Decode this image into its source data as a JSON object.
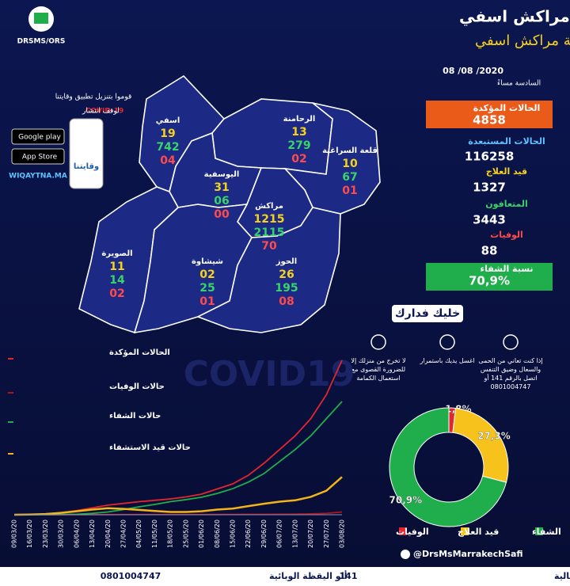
{
  "header": {
    "logo_text": "DRSMS/ORS",
    "title": "المديرية الجهوية للصحة بجهة مراكش اسفي",
    "subtitle": "الرصد الصحي لفيروس كورونا حسب أقاليم جهة مراكش اسفي"
  },
  "app": {
    "line1": "قوموا بتنزيل تطبيق وقايتنا",
    "line2_prefix": "لوقف انتشار",
    "line2_highlight": "COVID-19",
    "google": "Google play",
    "apple": "App Store",
    "app_name": "وقايتنا",
    "site": "WIQAYTNA.MA"
  },
  "map": {
    "regions": [
      {
        "name": "اسفي",
        "treatment": "19",
        "recovered": "742",
        "deaths": "04"
      },
      {
        "name": "الرحامنة",
        "treatment": "13",
        "recovered": "279",
        "deaths": "02"
      },
      {
        "name": "قلعة السراغنة",
        "treatment": "10",
        "recovered": "67",
        "deaths": "01"
      },
      {
        "name": "اليوسفية",
        "treatment": "31",
        "recovered": "06",
        "deaths": "00"
      },
      {
        "name": "مراكش",
        "treatment": "1215",
        "recovered": "2115",
        "deaths": "70"
      },
      {
        "name": "الصويرة",
        "treatment": "11",
        "recovered": "14",
        "deaths": "02"
      },
      {
        "name": "شيشاوة",
        "treatment": "02",
        "recovered": "25",
        "deaths": "01"
      },
      {
        "name": "الحوز",
        "treatment": "26",
        "recovered": "195",
        "deaths": "08"
      }
    ]
  },
  "stats": {
    "date": "08 /08 /2020",
    "time": "السادسة مساءً",
    "items": [
      {
        "label": "الحالات المؤكدة",
        "value": "4858"
      },
      {
        "label": "الحالات المستبعدة",
        "value": "116258"
      },
      {
        "label": "قيد العلاج",
        "value": "1327"
      },
      {
        "label": "المتعافون",
        "value": "3443"
      },
      {
        "label": "الوفيات",
        "value": "88"
      },
      {
        "label": "نسبة الشفاء",
        "value": "70,9%"
      }
    ]
  },
  "tips": {
    "title": "خليك فدارك",
    "items": [
      "إذا كنت تعاني من الحمى والسعال وضيق التنفس اتصل بالرقم 141 أو 0801004747",
      "اغسل يديك باستمرار",
      "لا تخرج من منزلك إلا للضرورة القصوى مع استعمال الكمامة"
    ]
  },
  "watermark": "COVID19",
  "chart_data": [
    {
      "type": "line",
      "categories": [
        "09/03/20",
        "16/03/20",
        "23/03/20",
        "30/03/20",
        "06/04/20",
        "13/04/20",
        "20/04/20",
        "27/04/20",
        "04/05/20",
        "11/05/20",
        "18/05/20",
        "25/05/20",
        "01/06/20",
        "08/06/20",
        "15/06/20",
        "22/06/20",
        "29/06/20",
        "06/07/20",
        "13/07/20",
        "20/07/20",
        "27/07/20",
        "03/08/20"
      ],
      "series": [
        {
          "name": "الحالات المؤكدة",
          "color": "#e3262d",
          "values": [
            0,
            5,
            20,
            60,
            120,
            200,
            280,
            330,
            380,
            420,
            460,
            520,
            600,
            750,
            900,
            1150,
            1500,
            1900,
            2300,
            2800,
            3500,
            4500
          ]
        },
        {
          "name": "حالات الوفيات",
          "color": "#b3121b",
          "values": [
            0,
            0,
            0,
            1,
            2,
            3,
            4,
            5,
            5,
            5,
            6,
            6,
            6,
            7,
            8,
            10,
            12,
            14,
            18,
            25,
            40,
            80
          ]
        },
        {
          "name": "حالات الشفاء",
          "color": "#1fae4b",
          "values": [
            0,
            0,
            0,
            5,
            15,
            40,
            80,
            150,
            230,
            300,
            380,
            440,
            510,
            620,
            760,
            950,
            1200,
            1550,
            1900,
            2300,
            2800,
            3300
          ]
        },
        {
          "name": "حالات قيد الاستشفاء",
          "color": "#f2b418",
          "values": [
            0,
            5,
            20,
            55,
            100,
            150,
            190,
            170,
            140,
            110,
            80,
            80,
            100,
            150,
            180,
            250,
            320,
            380,
            420,
            520,
            700,
            1100
          ]
        }
      ]
    },
    {
      "type": "pie",
      "categories": [
        "الوفيات",
        "قيد العلاج",
        "الشفاء"
      ],
      "values": [
        1.8,
        27.3,
        70.9
      ],
      "value_labels": [
        "1,8%",
        "27,3%",
        "70,9%"
      ],
      "colors": [
        "#e3262d",
        "#f7c21b",
        "#1fae4b"
      ],
      "donut": true
    }
  ],
  "footer": {
    "social": "@DrsMsMarrakechSafi",
    "emergency_label": "ألو المساعدة الطبية الاستعجالية",
    "emergency_number": "141",
    "epi_label": "ألو اليقظة الوبائية",
    "epi_number": "0801004747"
  }
}
